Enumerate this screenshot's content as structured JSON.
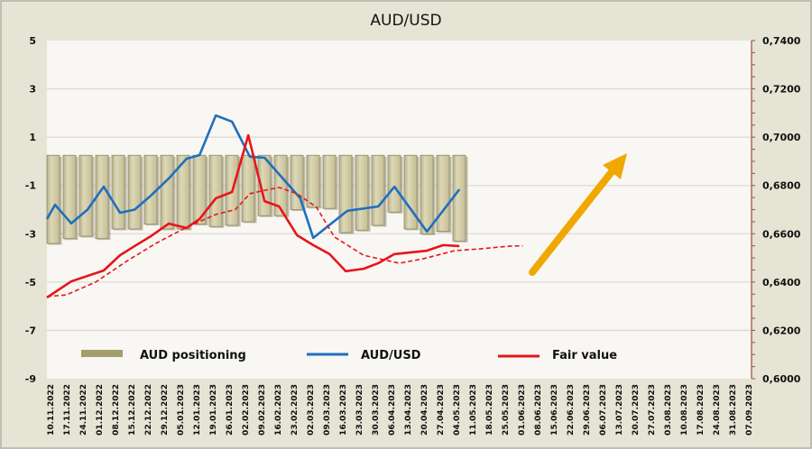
{
  "chart_data": {
    "type": "bar+line",
    "title": "AUD/USD",
    "x_labels": [
      "10.11.2022",
      "17.11.2022",
      "24.11.2022",
      "01.12.2022",
      "08.12.2022",
      "15.12.2022",
      "22.12.2022",
      "29.12.2022",
      "05.01.2023",
      "12.01.2023",
      "19.01.2023",
      "26.01.2023",
      "02.02.2023",
      "09.02.2023",
      "16.02.2023",
      "23.02.2023",
      "02.03.2023",
      "09.03.2023",
      "16.03.2023",
      "23.03.2023",
      "30.03.2023",
      "06.04.2023",
      "13.04.2023",
      "20.04.2023",
      "27.04.2023",
      "04.05.2023",
      "11.05.2023",
      "18.05.2023",
      "25.05.2023",
      "01.06.2023",
      "08.06.2023",
      "15.06.2023",
      "22.06.2023",
      "29.06.2023",
      "06.07.2023",
      "13.07.2023",
      "20.07.2023",
      "27.07.2023",
      "03.08.2023",
      "10.08.2023",
      "17.08.2023",
      "24.08.2023",
      "31.08.2023",
      "07.09.2023"
    ],
    "left_axis": {
      "ylim": [
        -9,
        5
      ],
      "ticks": [
        "5",
        "3",
        "1",
        "-1",
        "-3",
        "-5",
        "-7",
        "-9"
      ],
      "tick_values": [
        5,
        3,
        1,
        -1,
        -3,
        -5,
        -7,
        -9
      ]
    },
    "right_axis": {
      "ylim": [
        0.6,
        0.74
      ],
      "ticks": [
        "0,7400",
        "0,7200",
        "0,7000",
        "0,6800",
        "0,6600",
        "0,6400",
        "0,6200",
        "0,6000"
      ],
      "tick_values": [
        0.74,
        0.72,
        0.7,
        0.68,
        0.66,
        0.64,
        0.62,
        0.6
      ]
    },
    "grid": true,
    "series": [
      {
        "name": "AUD positioning",
        "type": "bar",
        "axis": "left",
        "color": "#cfc89c",
        "values": [
          -3.4,
          -3.2,
          -3.1,
          -3.2,
          -2.8,
          -2.8,
          -2.6,
          -2.8,
          -2.8,
          -2.6,
          -2.7,
          -2.65,
          -2.5,
          -2.25,
          -2.25,
          -2.0,
          -1.9,
          -1.95,
          -2.95,
          -2.85,
          -2.65,
          -2.1,
          -2.8,
          -3.0,
          -2.9,
          -3.3
        ]
      },
      {
        "name": "AUD/USD",
        "type": "line",
        "axis": "right",
        "color": "#1f6fbf",
        "points": [
          [
            0,
            0.6661
          ],
          [
            0.5,
            0.672
          ],
          [
            1.5,
            0.6643
          ],
          [
            2.5,
            0.67
          ],
          [
            3.5,
            0.6795
          ],
          [
            4.5,
            0.6687
          ],
          [
            5.4,
            0.67
          ],
          [
            6.4,
            0.6758
          ],
          [
            7.5,
            0.6829
          ],
          [
            8.6,
            0.6911
          ],
          [
            9.4,
            0.6926
          ],
          [
            10.4,
            0.709
          ],
          [
            11.4,
            0.7064
          ],
          [
            12.5,
            0.6919
          ],
          [
            13.4,
            0.6915
          ],
          [
            15.6,
            0.6747
          ],
          [
            16.4,
            0.6583
          ],
          [
            18.5,
            0.6695
          ],
          [
            20.4,
            0.6713
          ],
          [
            21.4,
            0.6795
          ],
          [
            23.4,
            0.6609
          ],
          [
            25.4,
            0.6784
          ]
        ]
      },
      {
        "name": "Fair value",
        "type": "line",
        "axis": "right",
        "color": "#e8141a",
        "points": [
          [
            0,
            0.6336
          ],
          [
            1.5,
            0.6403
          ],
          [
            3.5,
            0.6448
          ],
          [
            4.5,
            0.6511
          ],
          [
            5.4,
            0.6549
          ],
          [
            6.4,
            0.659
          ],
          [
            7.5,
            0.6642
          ],
          [
            8.6,
            0.6624
          ],
          [
            9.4,
            0.6661
          ],
          [
            10.4,
            0.6747
          ],
          [
            11.4,
            0.6773
          ],
          [
            12.4,
            0.7008
          ],
          [
            13.4,
            0.6735
          ],
          [
            14.3,
            0.6713
          ],
          [
            15.4,
            0.6594
          ],
          [
            16.4,
            0.6553
          ],
          [
            17.4,
            0.6516
          ],
          [
            18.4,
            0.6445
          ],
          [
            19.5,
            0.6455
          ],
          [
            20.4,
            0.6478
          ],
          [
            21.4,
            0.6516
          ],
          [
            23.4,
            0.653
          ],
          [
            24.4,
            0.6553
          ],
          [
            25.4,
            0.6549
          ]
        ]
      },
      {
        "name": "Fair value trend",
        "type": "line",
        "style": "dashed",
        "axis": "right",
        "color": "#e8141a",
        "in_legend": false,
        "points": [
          [
            0,
            0.634
          ],
          [
            1.2,
            0.6347
          ],
          [
            3.0,
            0.64
          ],
          [
            4.9,
            0.6486
          ],
          [
            6.7,
            0.656
          ],
          [
            8.6,
            0.6627
          ],
          [
            10.4,
            0.668
          ],
          [
            11.6,
            0.67
          ],
          [
            12.5,
            0.6766
          ],
          [
            13.2,
            0.6777
          ],
          [
            14.3,
            0.6792
          ],
          [
            15.4,
            0.6766
          ],
          [
            16.6,
            0.671
          ],
          [
            17.7,
            0.6587
          ],
          [
            19.5,
            0.6511
          ],
          [
            21.7,
            0.6478
          ],
          [
            23.2,
            0.6497
          ],
          [
            25.1,
            0.653
          ],
          [
            26.6,
            0.6537
          ],
          [
            28.5,
            0.6549
          ],
          [
            29.3,
            0.655
          ]
        ]
      }
    ],
    "annotation": {
      "type": "arrow",
      "direction": "up-right",
      "color": "#f0a800"
    },
    "legend": {
      "placement": "bottom-inside",
      "items": [
        "AUD positioning",
        "AUD/USD",
        "Fair value"
      ]
    }
  }
}
